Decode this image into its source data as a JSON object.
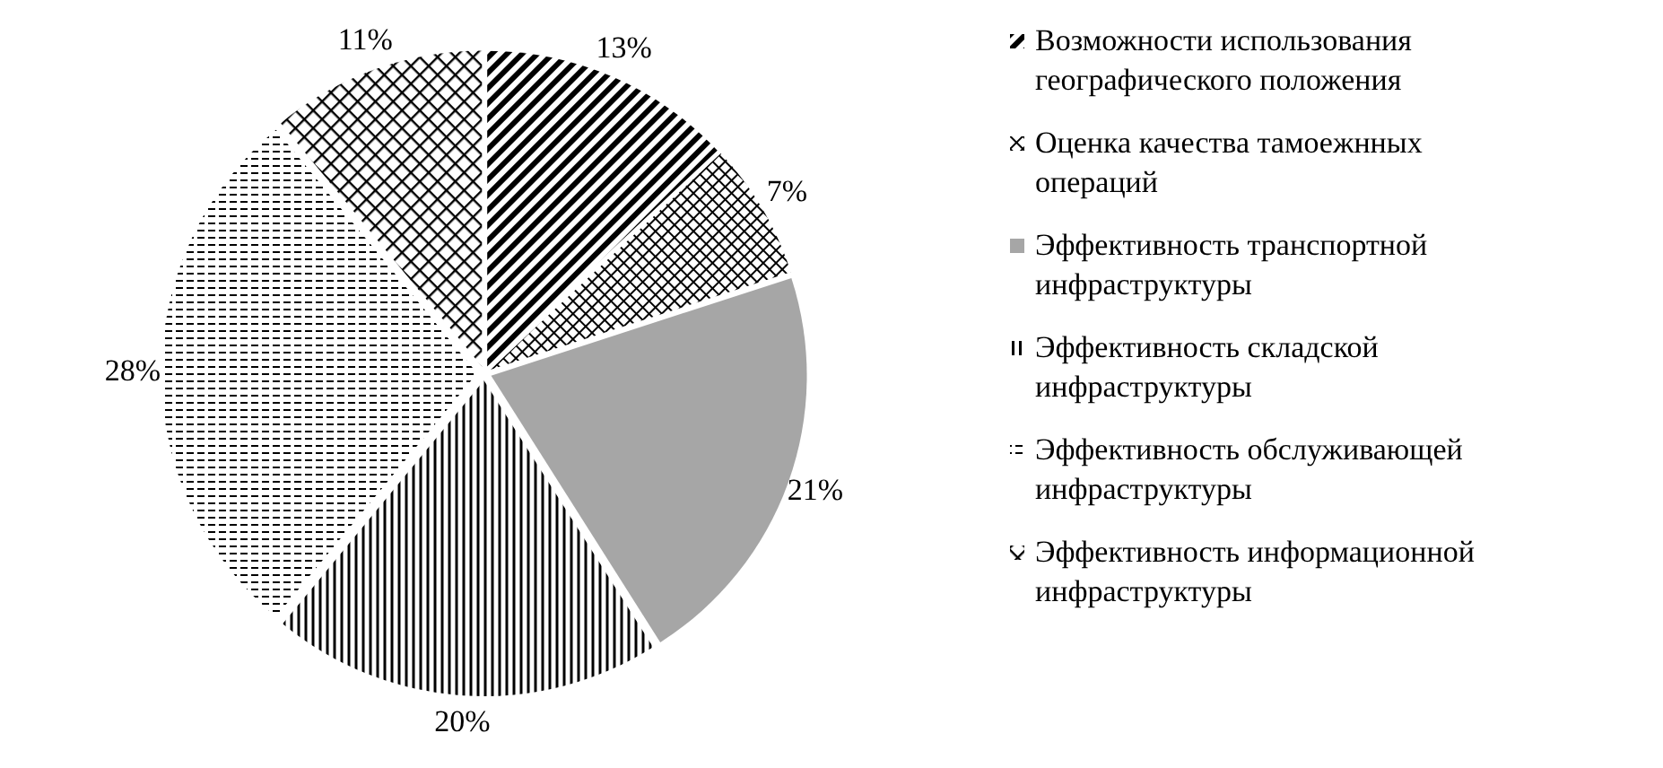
{
  "chart_data": {
    "type": "pie",
    "categories": [
      "Возможности использования географического положения",
      "Оценка качества тамоежнных операций",
      "Эффективность транспортной инфраструктуры",
      "Эффективность складской инфраструктуры",
      "Эффективность обслуживающей инфраструктуры",
      "Эффективность информационной инфраструктуры"
    ],
    "values": [
      13,
      7,
      21,
      20,
      28,
      11
    ],
    "colors": [
      "#000000",
      "#000000",
      "#a6a6a6",
      "#000000",
      "#000000",
      "#000000"
    ],
    "value_labels": [
      "13%",
      "7%",
      "21%",
      "20%",
      "28%",
      "11%"
    ],
    "legend": "right"
  }
}
